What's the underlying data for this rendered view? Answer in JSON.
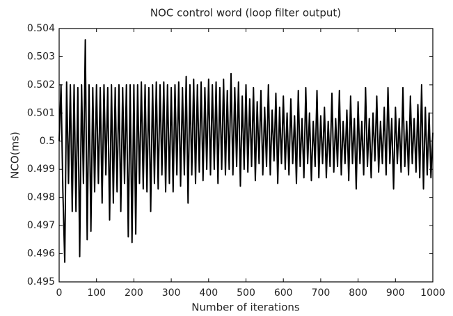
{
  "chart_data": {
    "type": "line",
    "title": "NOC control word (loop filter output)",
    "x_label": "Number of iterations",
    "y_label": "NCO(ms)",
    "color": "#000000",
    "grid": false,
    "xlim": [
      0,
      1000
    ],
    "xticks": [
      0,
      100,
      200,
      300,
      400,
      500,
      600,
      700,
      800,
      900,
      1000
    ],
    "ylim": [
      0.495,
      0.504
    ],
    "yticks": [
      0.495,
      0.496,
      0.497,
      0.498,
      0.499,
      0.5,
      0.501,
      0.502,
      0.503,
      0.504
    ],
    "x": [
      0,
      5,
      10,
      15,
      20,
      25,
      30,
      35,
      40,
      45,
      50,
      55,
      60,
      65,
      70,
      75,
      80,
      85,
      90,
      95,
      100,
      105,
      110,
      115,
      120,
      125,
      130,
      135,
      140,
      145,
      150,
      155,
      160,
      165,
      170,
      175,
      180,
      185,
      190,
      195,
      200,
      205,
      210,
      215,
      220,
      225,
      230,
      235,
      240,
      245,
      250,
      255,
      260,
      265,
      270,
      275,
      280,
      285,
      290,
      295,
      300,
      305,
      310,
      315,
      320,
      325,
      330,
      335,
      340,
      345,
      350,
      355,
      360,
      365,
      370,
      375,
      380,
      385,
      390,
      395,
      400,
      405,
      410,
      415,
      420,
      425,
      430,
      435,
      440,
      445,
      450,
      455,
      460,
      465,
      470,
      475,
      480,
      485,
      490,
      495,
      500,
      505,
      510,
      515,
      520,
      525,
      530,
      535,
      540,
      545,
      550,
      555,
      560,
      565,
      570,
      575,
      580,
      585,
      590,
      595,
      600,
      605,
      610,
      615,
      620,
      625,
      630,
      635,
      640,
      645,
      650,
      655,
      660,
      665,
      670,
      675,
      680,
      685,
      690,
      695,
      700,
      705,
      710,
      715,
      720,
      725,
      730,
      735,
      740,
      745,
      750,
      755,
      760,
      765,
      770,
      775,
      780,
      785,
      790,
      795,
      800,
      805,
      810,
      815,
      820,
      825,
      830,
      835,
      840,
      845,
      850,
      855,
      860,
      865,
      870,
      875,
      880,
      885,
      890,
      895,
      900,
      905,
      910,
      915,
      920,
      925,
      930,
      935,
      940,
      945,
      950,
      955,
      960,
      965,
      970,
      975,
      980,
      985,
      990,
      995,
      1000
    ],
    "values": [
      0.5,
      0.502,
      0.4982,
      0.4957,
      0.5021,
      0.4985,
      0.502,
      0.4975,
      0.502,
      0.4975,
      0.5019,
      0.4959,
      0.502,
      0.4985,
      0.5036,
      0.4965,
      0.502,
      0.4968,
      0.5019,
      0.4982,
      0.502,
      0.4985,
      0.5019,
      0.4978,
      0.502,
      0.4988,
      0.5019,
      0.4972,
      0.502,
      0.4978,
      0.5019,
      0.4982,
      0.502,
      0.4975,
      0.5019,
      0.4985,
      0.502,
      0.4966,
      0.502,
      0.4964,
      0.502,
      0.4967,
      0.502,
      0.4985,
      0.5021,
      0.4983,
      0.502,
      0.4982,
      0.5019,
      0.4975,
      0.502,
      0.4985,
      0.5021,
      0.4983,
      0.502,
      0.4988,
      0.5021,
      0.4982,
      0.502,
      0.4985,
      0.5019,
      0.4982,
      0.502,
      0.4988,
      0.5021,
      0.4984,
      0.5019,
      0.4988,
      0.5023,
      0.4978,
      0.502,
      0.4988,
      0.5022,
      0.4985,
      0.502,
      0.4989,
      0.5021,
      0.4986,
      0.5019,
      0.499,
      0.5022,
      0.4988,
      0.502,
      0.499,
      0.5021,
      0.4985,
      0.5019,
      0.499,
      0.5022,
      0.4988,
      0.5018,
      0.499,
      0.5024,
      0.4988,
      0.5019,
      0.4991,
      0.5021,
      0.4984,
      0.5016,
      0.499,
      0.502,
      0.4989,
      0.5015,
      0.4991,
      0.5019,
      0.4986,
      0.5014,
      0.4992,
      0.5018,
      0.4988,
      0.5012,
      0.4991,
      0.502,
      0.4988,
      0.5011,
      0.4993,
      0.5017,
      0.4985,
      0.5012,
      0.4992,
      0.5016,
      0.499,
      0.501,
      0.4988,
      0.5015,
      0.4992,
      0.5009,
      0.4985,
      0.5018,
      0.4991,
      0.5008,
      0.4987,
      0.5019,
      0.4992,
      0.501,
      0.4986,
      0.5007,
      0.4991,
      0.5018,
      0.4987,
      0.5009,
      0.4992,
      0.5012,
      0.4987,
      0.5007,
      0.4991,
      0.5017,
      0.4989,
      0.5008,
      0.4991,
      0.5018,
      0.4988,
      0.5007,
      0.4992,
      0.5011,
      0.4986,
      0.5016,
      0.4992,
      0.5008,
      0.4983,
      0.5014,
      0.4992,
      0.5007,
      0.4988,
      0.5019,
      0.4991,
      0.5008,
      0.4987,
      0.501,
      0.4993,
      0.5016,
      0.4989,
      0.5007,
      0.4992,
      0.5012,
      0.4988,
      0.5019,
      0.4992,
      0.5008,
      0.4983,
      0.5012,
      0.4992,
      0.5008,
      0.4989,
      0.5019,
      0.4991,
      0.5007,
      0.4988,
      0.5016,
      0.4992,
      0.5008,
      0.4989,
      0.5013,
      0.4987,
      0.502,
      0.4983,
      0.5012,
      0.4988,
      0.501,
      0.4987,
      0.5003
    ]
  }
}
